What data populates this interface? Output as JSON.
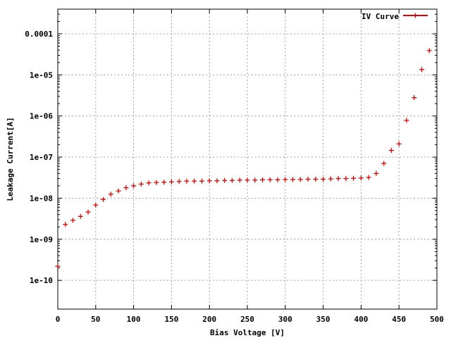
{
  "chart_data": {
    "type": "scatter",
    "title": "",
    "xlabel": "Bias Voltage [V]",
    "ylabel": "Leakage Current[A]",
    "xlim": [
      0,
      500
    ],
    "ylim_log10": [
      -10.7,
      -3.4
    ],
    "y_scale": "log",
    "grid": true,
    "legend_position": "top-right",
    "x_ticks": [
      0,
      50,
      100,
      150,
      200,
      250,
      300,
      350,
      400,
      450,
      500
    ],
    "x_tick_labels": [
      "0",
      "50",
      "100",
      "150",
      "200",
      "250",
      "300",
      "350",
      "400",
      "450",
      "500"
    ],
    "y_ticks": [
      1e-10,
      1e-09,
      1e-08,
      1e-07,
      1e-06,
      1e-05,
      0.0001
    ],
    "y_tick_labels": [
      "1e-10",
      "1e-09",
      "1e-08",
      "1e-07",
      "1e-06",
      "1e-05",
      "0.0001"
    ],
    "series": [
      {
        "name": "IV Curve",
        "color": "#e00000",
        "marker": "plus",
        "x": [
          0,
          10,
          20,
          30,
          40,
          50,
          60,
          70,
          80,
          90,
          100,
          110,
          120,
          130,
          140,
          150,
          160,
          170,
          180,
          190,
          200,
          210,
          220,
          230,
          240,
          250,
          260,
          270,
          280,
          290,
          300,
          310,
          320,
          330,
          340,
          350,
          360,
          370,
          380,
          390,
          400,
          410,
          420,
          430,
          440,
          450,
          460,
          470,
          480,
          490
        ],
        "y": [
          2.2e-10,
          2.3e-09,
          2.9e-09,
          3.6e-09,
          4.6e-09,
          6.8e-09,
          9.3e-09,
          1.25e-08,
          1.5e-08,
          1.8e-08,
          2e-08,
          2.2e-08,
          2.35e-08,
          2.4e-08,
          2.45e-08,
          2.5e-08,
          2.55e-08,
          2.6e-08,
          2.6e-08,
          2.6e-08,
          2.65e-08,
          2.65e-08,
          2.7e-08,
          2.7e-08,
          2.75e-08,
          2.75e-08,
          2.75e-08,
          2.8e-08,
          2.8e-08,
          2.8e-08,
          2.85e-08,
          2.85e-08,
          2.85e-08,
          2.9e-08,
          2.9e-08,
          2.9e-08,
          2.95e-08,
          3e-08,
          3e-08,
          3.05e-08,
          3.1e-08,
          3.2e-08,
          4e-08,
          7e-08,
          1.45e-07,
          2.1e-07,
          7.8e-07,
          2.8e-06,
          1.35e-05,
          3.9e-05
        ]
      }
    ]
  }
}
